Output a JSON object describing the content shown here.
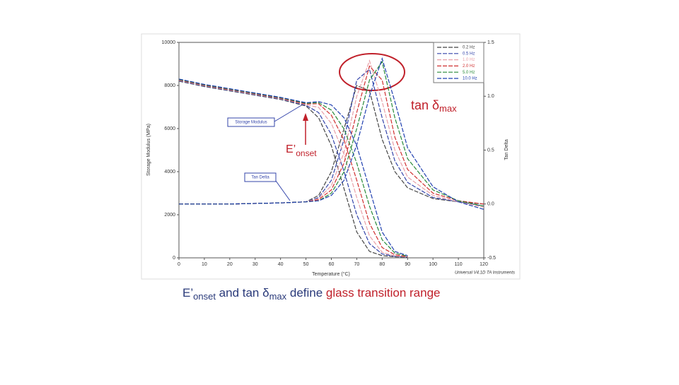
{
  "chart_data": {
    "type": "line",
    "xlabel": "Temperature (°C)",
    "ylabel": "Storage Modulus (MPa)",
    "y2label": "Tan Delta",
    "xlim": [
      0,
      120
    ],
    "xticks": [
      0,
      10,
      20,
      30,
      40,
      50,
      60,
      70,
      80,
      90,
      100,
      110,
      120
    ],
    "ylim": [
      0,
      10000
    ],
    "yticks": [
      0,
      2000,
      4000,
      6000,
      8000,
      10000
    ],
    "y2lim": [
      -0.5,
      1.5
    ],
    "y2ticks": [
      -0.5,
      {
        "value": 0,
        "label": "0.0"
      },
      0.5,
      {
        "value": 1,
        "label": "1.0"
      },
      1.5
    ],
    "modulus_x": [
      0,
      10,
      20,
      30,
      40,
      50,
      55,
      60,
      65,
      70,
      75,
      80,
      85,
      90
    ],
    "tan_x": [
      0,
      20,
      40,
      50,
      55,
      60,
      65,
      70,
      75,
      80,
      85,
      90,
      100,
      110,
      120
    ],
    "series": [
      {
        "name": "0.2 Hz",
        "color": "#444444",
        "modulus": [
          8200,
          7950,
          7750,
          7550,
          7350,
          7050,
          6500,
          5200,
          3200,
          1200,
          300,
          100,
          50,
          30
        ],
        "tan_delta": [
          0,
          0,
          0.01,
          0.02,
          0.08,
          0.3,
          0.7,
          1.1,
          1.05,
          0.6,
          0.3,
          0.15,
          0.05,
          0.02,
          0
        ]
      },
      {
        "name": "0.5 Hz",
        "color": "#3344aa",
        "modulus": [
          8220,
          7970,
          7770,
          7570,
          7370,
          7080,
          6740,
          5720,
          4000,
          2000,
          660,
          180,
          70,
          40
        ],
        "tan_delta": [
          0,
          0,
          0.01,
          0.02,
          0.06,
          0.22,
          0.6,
          1.15,
          1.25,
          0.8,
          0.4,
          0.2,
          0.06,
          0.02,
          -0.02
        ]
      },
      {
        "name": "1.0 Hz",
        "color": "#e8a0a8",
        "modulus": [
          8240,
          7990,
          7790,
          7590,
          7390,
          7110,
          6980,
          6240,
          4800,
          2800,
          1020,
          260,
          90,
          50
        ],
        "tan_delta": [
          0,
          0,
          0.01,
          0.02,
          0.05,
          0.17,
          0.48,
          1.0,
          1.33,
          0.95,
          0.5,
          0.25,
          0.08,
          0.02,
          -0.03
        ]
      },
      {
        "name": "2.0 Hz",
        "color": "#d03030",
        "modulus": [
          8260,
          8010,
          7810,
          7610,
          7410,
          7140,
          7150,
          6620,
          5460,
          3600,
          1600,
          480,
          140,
          60
        ],
        "tan_delta": [
          0,
          0,
          0.01,
          0.02,
          0.04,
          0.13,
          0.38,
          0.85,
          1.28,
          1.15,
          0.62,
          0.32,
          0.1,
          0.03,
          0
        ]
      },
      {
        "name": "5.0 Hz",
        "color": "#2a8a3a",
        "modulus": [
          8280,
          8030,
          7830,
          7630,
          7430,
          7170,
          7200,
          6860,
          5980,
          4400,
          2400,
          840,
          220,
          80
        ],
        "tan_delta": [
          0,
          0,
          0.01,
          0.02,
          0.03,
          0.1,
          0.3,
          0.7,
          1.15,
          1.32,
          0.8,
          0.42,
          0.13,
          0.03,
          -0.02
        ]
      },
      {
        "name": "10.0 Hz",
        "color": "#2040b0",
        "modulus": [
          8300,
          8050,
          7850,
          7650,
          7450,
          7200,
          7250,
          7100,
          6500,
          5200,
          3200,
          1200,
          300,
          100
        ],
        "tan_delta": [
          0,
          0,
          0.01,
          0.02,
          0.03,
          0.08,
          0.22,
          0.55,
          1.0,
          1.35,
          0.95,
          0.52,
          0.16,
          0.02,
          -0.05
        ]
      }
    ],
    "annotations": {
      "storage_modulus": "Storage Modulus",
      "tan_delta": "Tan Delta",
      "tan_max": [
        "tan δ",
        "max"
      ],
      "onset": [
        "E’",
        "onset"
      ],
      "credit": "Universal V4.1D TA Instruments"
    },
    "caption": [
      "E’",
      "onset",
      " and tan δ",
      "max",
      " define ",
      "glass transition range"
    ]
  }
}
